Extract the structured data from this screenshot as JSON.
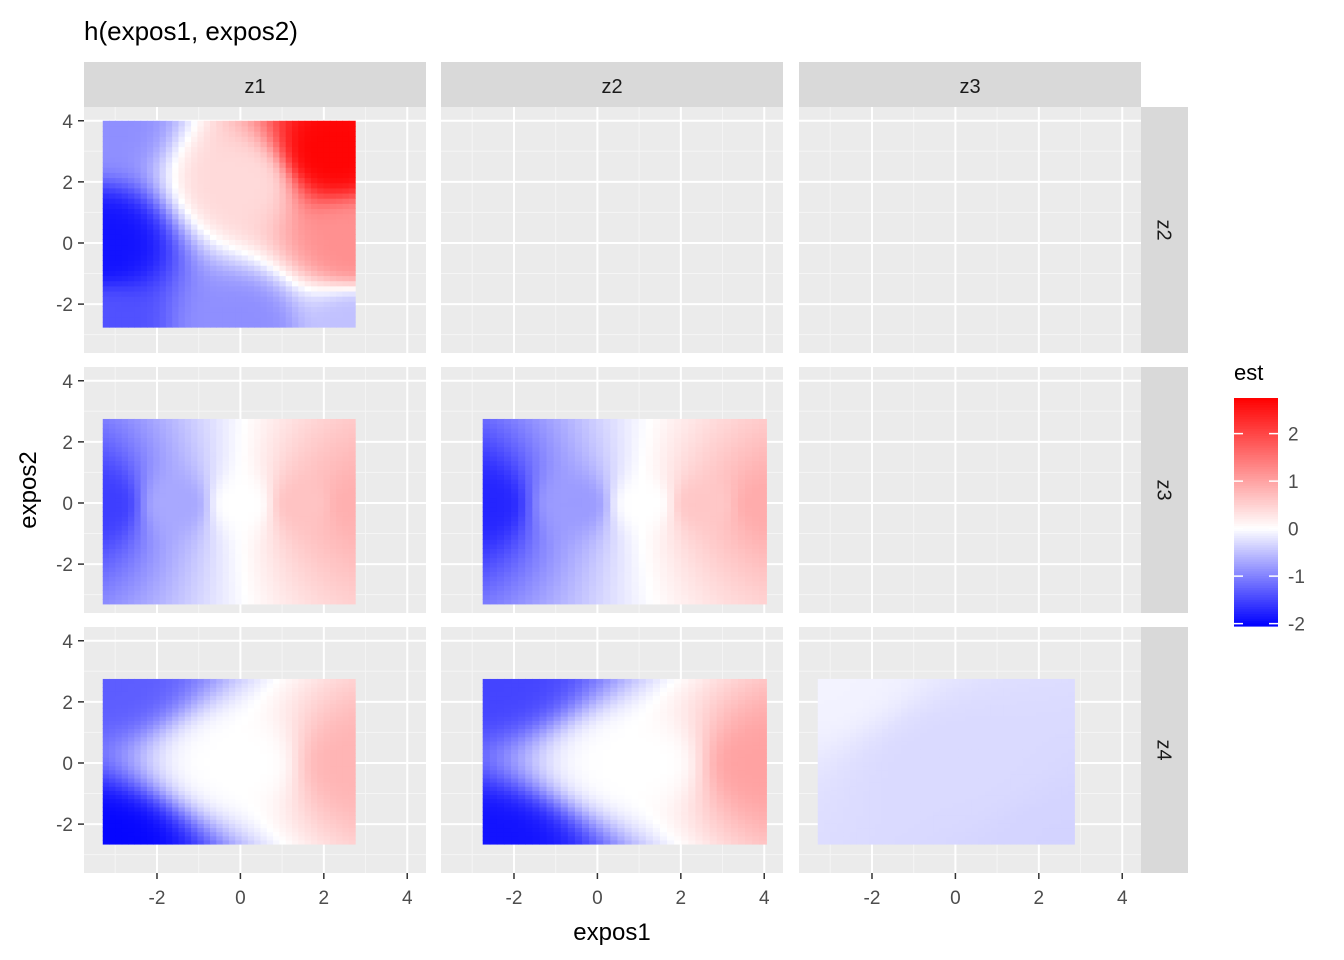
{
  "chart_data": {
    "type": "heatmap",
    "title": "h(expos1, expos2)",
    "xlabel": "expos1",
    "ylabel": "expos2",
    "xlim": [
      -3.75,
      4.45
    ],
    "ylim": [
      -3.6,
      4.45
    ],
    "x_ticks": [
      -2,
      0,
      2,
      4
    ],
    "y_ticks": [
      -2,
      0,
      2,
      4
    ],
    "x_tick_labels": [
      "-2",
      "0",
      "2",
      "4"
    ],
    "y_tick_labels": [
      "-2",
      "0",
      "2",
      "4"
    ],
    "facet_cols": [
      "z1",
      "z2",
      "z3"
    ],
    "facet_rows": [
      "z2",
      "z3",
      "z4"
    ],
    "legend": {
      "title": "est",
      "position": "right",
      "range": [
        -2.05,
        2.75
      ],
      "ticks": [
        2,
        1,
        0,
        -1,
        -2
      ],
      "tick_labels": [
        "2",
        "1",
        "0",
        "-1",
        "-2"
      ],
      "low_color": "#0000ff",
      "mid_color": "#ffffff",
      "high_color": "#ff0000",
      "midpoint": 0
    },
    "grid": true,
    "panel_background": "#ebebeb",
    "strip_background": "#d9d9d9",
    "panels": [
      {
        "row": "z2",
        "col": "z1",
        "x_range": [
          -3.3,
          2.75
        ],
        "y_range": [
          -2.75,
          4.0
        ],
        "samples": [
          {
            "x": -3.3,
            "y": -2.75,
            "value": -1.4
          },
          {
            "x": -3.3,
            "y": 0,
            "value": -1.9
          },
          {
            "x": -3.3,
            "y": 4.0,
            "value": -0.9
          },
          {
            "x": 0,
            "y": -2.75,
            "value": -0.9
          },
          {
            "x": 0,
            "y": 2.0,
            "value": 0.4
          },
          {
            "x": 2.2,
            "y": 3.0,
            "value": 2.7
          },
          {
            "x": 2.75,
            "y": -2.75,
            "value": -0.5
          },
          {
            "x": 2.75,
            "y": 0,
            "value": 1.2
          }
        ]
      },
      {
        "row": "z3",
        "col": "z1",
        "x_range": [
          -3.3,
          2.75
        ],
        "y_range": [
          -3.3,
          2.75
        ],
        "samples": [
          {
            "x": -3.3,
            "y": 0,
            "value": -1.55
          },
          {
            "x": -1.5,
            "y": 0,
            "value": -0.7
          },
          {
            "x": 0,
            "y": 0,
            "value": 0.0
          },
          {
            "x": 1.5,
            "y": 0,
            "value": 0.65
          },
          {
            "x": 2.75,
            "y": 0,
            "value": 0.85
          }
        ]
      },
      {
        "row": "z3",
        "col": "z2",
        "x_range": [
          -2.75,
          4.05
        ],
        "y_range": [
          -3.3,
          2.75
        ],
        "samples": [
          {
            "x": -2.75,
            "y": 0,
            "value": -1.75
          },
          {
            "x": -0.5,
            "y": 0,
            "value": -0.8
          },
          {
            "x": 1.1,
            "y": 0,
            "value": 0.0
          },
          {
            "x": 2.5,
            "y": 0,
            "value": 0.6
          },
          {
            "x": 4.05,
            "y": 0,
            "value": 0.9
          }
        ]
      },
      {
        "row": "z4",
        "col": "z1",
        "x_range": [
          -3.3,
          2.75
        ],
        "y_range": [
          -2.65,
          2.75
        ],
        "samples": [
          {
            "x": -3.3,
            "y": -2.65,
            "value": -2.0
          },
          {
            "x": -3.3,
            "y": 2.75,
            "value": -1.3
          },
          {
            "x": 0,
            "y": 0,
            "value": 0.0
          },
          {
            "x": 2.75,
            "y": 0,
            "value": 0.8
          }
        ]
      },
      {
        "row": "z4",
        "col": "z2",
        "x_range": [
          -2.75,
          4.05
        ],
        "y_range": [
          -2.65,
          2.75
        ],
        "samples": [
          {
            "x": -2.75,
            "y": -2.65,
            "value": -1.9
          },
          {
            "x": -2.75,
            "y": 2.75,
            "value": -1.5
          },
          {
            "x": 1.0,
            "y": 0,
            "value": 0.0
          },
          {
            "x": 4.05,
            "y": 0,
            "value": 1.0
          }
        ]
      },
      {
        "row": "z4",
        "col": "z3",
        "x_range": [
          -3.3,
          2.85
        ],
        "y_range": [
          -2.65,
          2.75
        ],
        "samples": [
          {
            "x": -3.3,
            "y": 2.75,
            "value": -0.1
          },
          {
            "x": 0,
            "y": 0,
            "value": -0.3
          },
          {
            "x": 2.85,
            "y": -2.65,
            "value": -0.35
          }
        ]
      }
    ]
  }
}
